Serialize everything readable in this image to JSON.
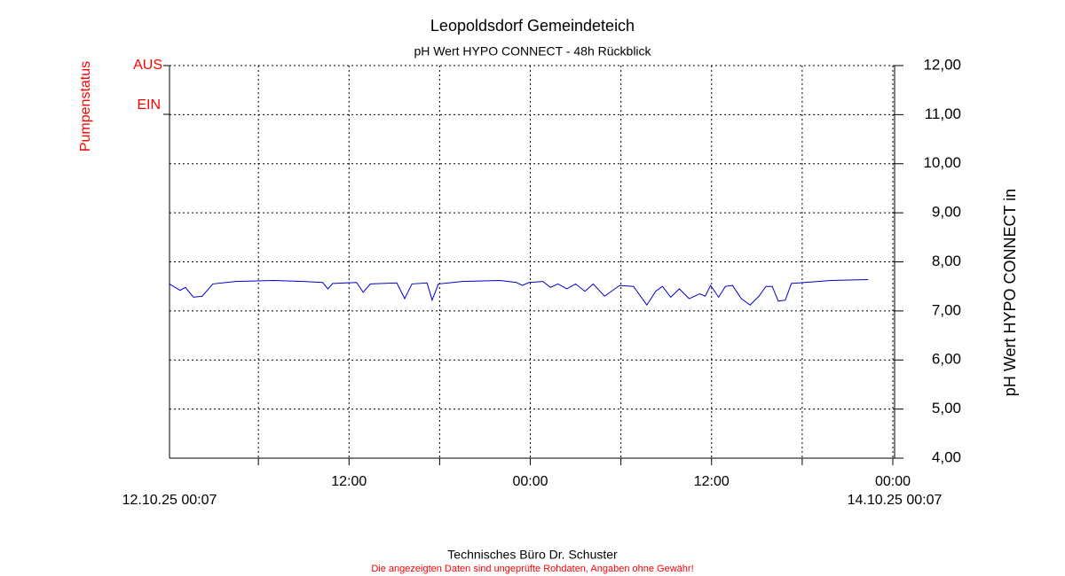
{
  "chart_data": {
    "type": "line",
    "title": "Leopoldsdorf Gemeindeteich",
    "subtitle": "pH Wert HYPO CONNECT - 48h Rückblick",
    "y_axis_label": "pH Wert HYPO CONNECT in",
    "pump_status": {
      "label": "Pumpenstatus",
      "levels": [
        "AUS",
        "EIN"
      ],
      "color": "#ff0000"
    },
    "footer": "Technisches Büro Dr. Schuster",
    "disclaimer": "Die angezeigten Daten sind ungeprüfte Rohdaten, Angaben ohne Gewähr!",
    "xlim": [
      {
        "value": "2025-10-12T00:07",
        "label": "12.10.25 00:07"
      },
      {
        "value": "2025-10-14T00:07",
        "label": "14.10.25 00:07"
      }
    ],
    "xticks": [
      {
        "value": "2025-10-12T06:00",
        "label": null
      },
      {
        "value": "2025-10-12T12:00",
        "label": "12:00"
      },
      {
        "value": "2025-10-12T18:00",
        "label": null
      },
      {
        "value": "2025-10-13T00:00",
        "label": "00:00"
      },
      {
        "value": "2025-10-13T06:00",
        "label": null
      },
      {
        "value": "2025-10-13T12:00",
        "label": "12:00"
      },
      {
        "value": "2025-10-13T18:00",
        "label": null
      },
      {
        "value": "2025-10-14T00:00",
        "label": "00:00"
      }
    ],
    "ylim": [
      4,
      12
    ],
    "yticks": [
      {
        "value": 4,
        "label": "4,00"
      },
      {
        "value": 5,
        "label": "5,00"
      },
      {
        "value": 6,
        "label": "6,00"
      },
      {
        "value": 7,
        "label": "7,00"
      },
      {
        "value": 8,
        "label": "8,00"
      },
      {
        "value": 9,
        "label": "9,00"
      },
      {
        "value": 10,
        "label": "10,00"
      },
      {
        "value": 11,
        "label": "11,00"
      },
      {
        "value": 12,
        "label": "12,00"
      }
    ],
    "grid": true,
    "series": [
      {
        "color": "#0000cc",
        "x": [
          "2025-10-12T00:07",
          "2025-10-12T00:49",
          "2025-10-12T01:10",
          "2025-10-12T01:42",
          "2025-10-12T02:17",
          "2025-10-12T02:59",
          "2025-10-12T04:30",
          "2025-10-12T07:00",
          "2025-10-12T09:00",
          "2025-10-12T10:15",
          "2025-10-12T10:36",
          "2025-10-12T10:55",
          "2025-10-12T12:30",
          "2025-10-12T12:56",
          "2025-10-12T13:25",
          "2025-10-12T15:10",
          "2025-10-12T15:41",
          "2025-10-12T16:10",
          "2025-10-12T17:10",
          "2025-10-12T17:30",
          "2025-10-12T17:55",
          "2025-10-12T19:30",
          "2025-10-12T22:00",
          "2025-10-12T23:05",
          "2025-10-12T23:28",
          "2025-10-12T23:55",
          "2025-10-13T00:50",
          "2025-10-13T01:20",
          "2025-10-13T01:50",
          "2025-10-13T02:25",
          "2025-10-13T03:00",
          "2025-10-13T03:37",
          "2025-10-13T04:10",
          "2025-10-13T04:55",
          "2025-10-13T05:55",
          "2025-10-13T06:50",
          "2025-10-13T07:43",
          "2025-10-13T08:18",
          "2025-10-13T08:45",
          "2025-10-13T09:18",
          "2025-10-13T09:52",
          "2025-10-13T10:31",
          "2025-10-13T11:13",
          "2025-10-13T11:35",
          "2025-10-13T11:56",
          "2025-10-13T12:28",
          "2025-10-13T12:55",
          "2025-10-13T13:23",
          "2025-10-13T13:58",
          "2025-10-13T14:33",
          "2025-10-13T15:08",
          "2025-10-13T15:36",
          "2025-10-13T16:01",
          "2025-10-13T16:25",
          "2025-10-13T16:53",
          "2025-10-13T17:17",
          "2025-10-13T18:10",
          "2025-10-13T19:55",
          "2025-10-13T22:22"
        ],
        "values": [
          7.55,
          7.42,
          7.48,
          7.28,
          7.3,
          7.55,
          7.6,
          7.62,
          7.6,
          7.58,
          7.45,
          7.56,
          7.58,
          7.38,
          7.55,
          7.57,
          7.25,
          7.55,
          7.57,
          7.22,
          7.55,
          7.6,
          7.62,
          7.58,
          7.52,
          7.58,
          7.6,
          7.48,
          7.55,
          7.45,
          7.55,
          7.4,
          7.55,
          7.3,
          7.52,
          7.5,
          7.12,
          7.4,
          7.5,
          7.28,
          7.45,
          7.25,
          7.35,
          7.3,
          7.52,
          7.28,
          7.5,
          7.52,
          7.25,
          7.12,
          7.3,
          7.5,
          7.5,
          7.2,
          7.22,
          7.56,
          7.58,
          7.62,
          7.64
        ]
      }
    ]
  }
}
